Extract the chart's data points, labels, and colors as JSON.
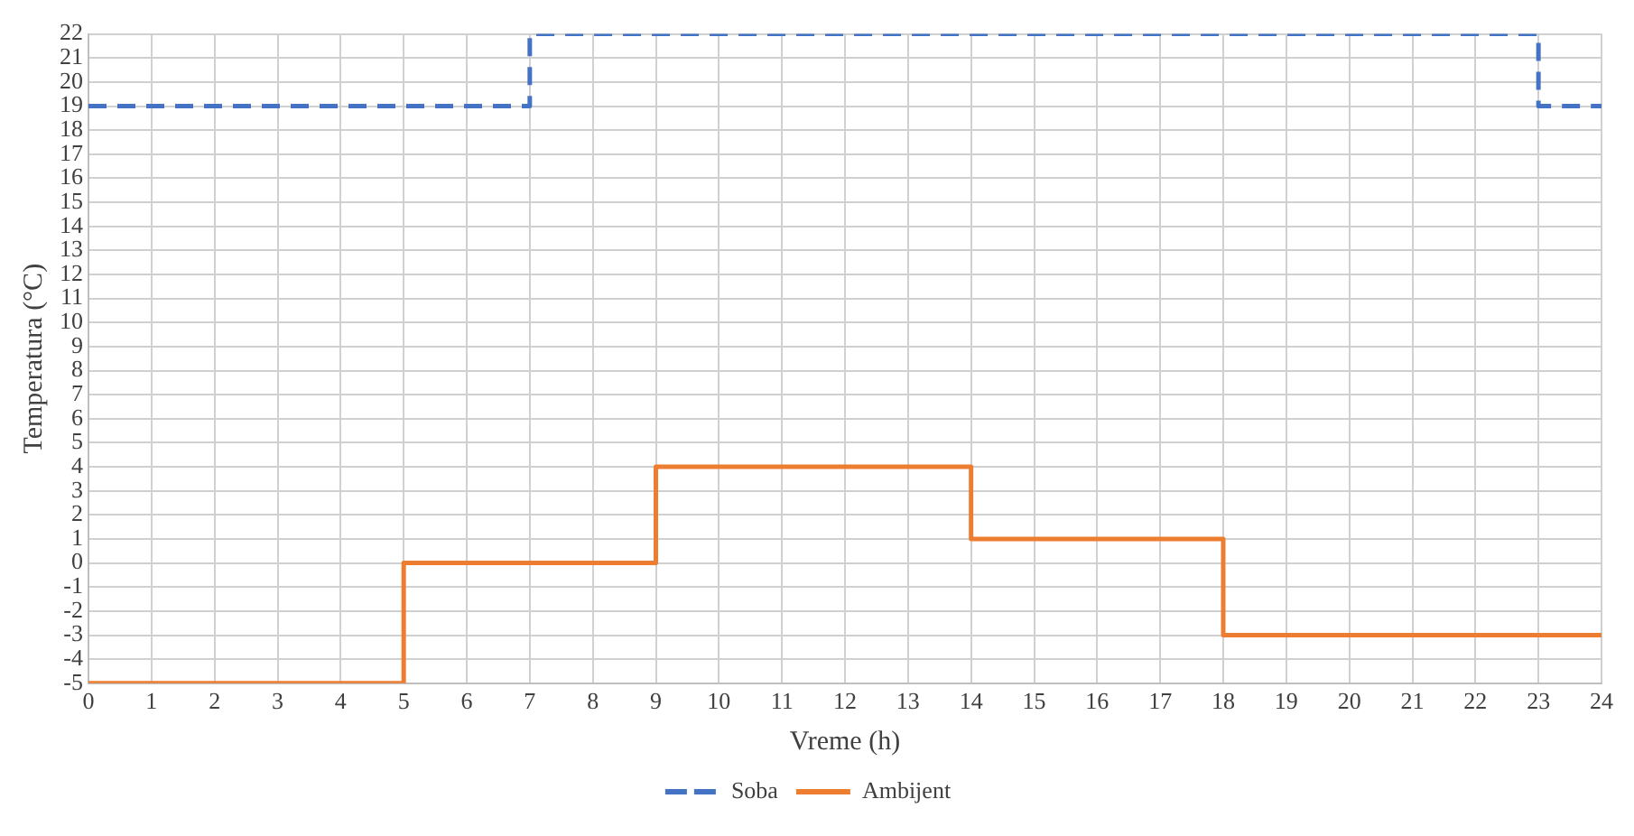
{
  "chart_data": {
    "type": "step",
    "xlabel": "Vreme (h)",
    "ylabel": "Temperatura (°C)",
    "xlim": [
      0,
      24
    ],
    "xticks": [
      0,
      1,
      2,
      3,
      4,
      5,
      6,
      7,
      8,
      9,
      10,
      11,
      12,
      13,
      14,
      15,
      16,
      17,
      18,
      19,
      20,
      21,
      22,
      23,
      24
    ],
    "ylim": [
      -5,
      22
    ],
    "yticks": [
      -5,
      -4,
      -3,
      -2,
      -1,
      0,
      1,
      2,
      3,
      4,
      5,
      6,
      7,
      8,
      9,
      10,
      11,
      12,
      13,
      14,
      15,
      16,
      17,
      18,
      19,
      20,
      21,
      22
    ],
    "grid": true,
    "legend": "bottom",
    "marker": "none",
    "series": [
      {
        "name": "Soba",
        "color": "#4472c4",
        "line_style": "dashed",
        "x": [
          0,
          7,
          23,
          24
        ],
        "values": [
          19,
          22,
          19,
          19
        ]
      },
      {
        "name": "Ambijent",
        "color": "#ed7d31",
        "line_style": "solid",
        "x": [
          0,
          5,
          9,
          14,
          18,
          24
        ],
        "values": [
          -5,
          0,
          4,
          1,
          -3,
          -3
        ]
      }
    ]
  }
}
